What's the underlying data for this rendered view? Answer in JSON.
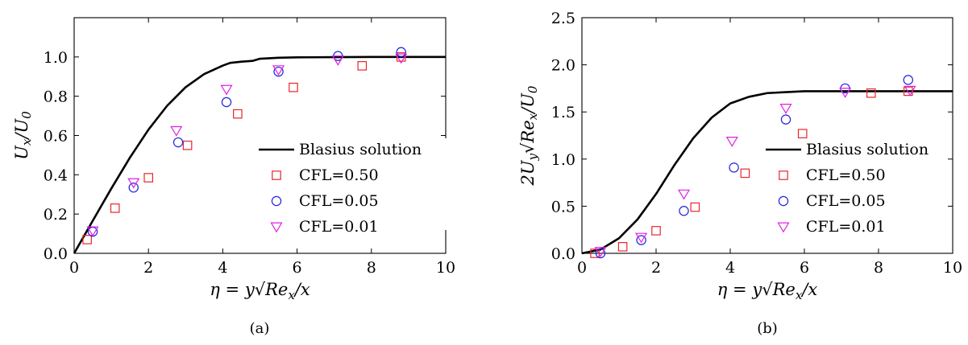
{
  "chart_data": [
    {
      "type": "scatter",
      "caption": "(a)",
      "xlabel": "η = y√Re_x/x",
      "ylabel": "U_x/U_0",
      "xlim": [
        0,
        10
      ],
      "ylim": [
        0,
        1.2
      ],
      "xticks": [
        0,
        2,
        4,
        6,
        8,
        10
      ],
      "yticks": [
        0,
        0.2,
        0.4,
        0.6,
        0.8,
        1.0
      ],
      "xtick_labels": [
        "0",
        "2",
        "4",
        "6",
        "8",
        "10"
      ],
      "ytick_labels": [
        "0.0",
        "0.2",
        "0.4",
        "0.6",
        "0.8",
        "1.0"
      ],
      "grid": false,
      "legend_position": "lower-right",
      "series": [
        {
          "name": "Blasius solution",
          "kind": "line",
          "color": "#000000",
          "x": [
            0,
            0.5,
            1.0,
            1.5,
            2.0,
            2.5,
            3.0,
            3.5,
            4.0,
            4.2,
            4.5,
            4.8,
            5.0,
            5.5,
            6.0,
            7.0,
            8.0,
            9.0,
            10.0
          ],
          "y": [
            0,
            0.166,
            0.33,
            0.487,
            0.63,
            0.751,
            0.846,
            0.913,
            0.956,
            0.97,
            0.976,
            0.98,
            0.991,
            0.996,
            0.998,
            0.999,
            1.0,
            1.0,
            1.0
          ]
        },
        {
          "name": "CFL=0.50",
          "kind": "scatter",
          "marker": "square",
          "color": "#e8262a",
          "x": [
            0.35,
            1.1,
            2.0,
            3.05,
            4.4,
            5.9,
            7.75,
            8.8
          ],
          "y": [
            0.07,
            0.23,
            0.385,
            0.55,
            0.71,
            0.845,
            0.955,
            1.0
          ]
        },
        {
          "name": "CFL=0.05",
          "kind": "scatter",
          "marker": "circle",
          "color": "#2222e0",
          "x": [
            0.5,
            1.6,
            2.8,
            4.1,
            5.5,
            7.1,
            8.8
          ],
          "y": [
            0.11,
            0.335,
            0.565,
            0.77,
            0.925,
            1.005,
            1.025
          ]
        },
        {
          "name": "CFL=0.01",
          "kind": "scatter",
          "marker": "triangle-down",
          "color": "#e020e0",
          "x": [
            0.5,
            1.6,
            2.75,
            4.1,
            5.5,
            7.1,
            8.8
          ],
          "y": [
            0.115,
            0.36,
            0.625,
            0.835,
            0.935,
            0.985,
            0.995
          ]
        }
      ]
    },
    {
      "type": "scatter",
      "caption": "(b)",
      "xlabel": "η = y√Re_x/x",
      "ylabel": "2U_y√Re_x/U_0",
      "xlim": [
        0,
        10
      ],
      "ylim": [
        0,
        2.5
      ],
      "xticks": [
        0,
        2,
        4,
        6,
        8,
        10
      ],
      "yticks": [
        0,
        0.5,
        1.0,
        1.5,
        2.0,
        2.5
      ],
      "xtick_labels": [
        "0",
        "2",
        "4",
        "6",
        "8",
        "10"
      ],
      "ytick_labels": [
        "0.0",
        "0.5",
        "1.0",
        "1.5",
        "2.0",
        "2.5"
      ],
      "grid": false,
      "legend_position": "lower-right",
      "series": [
        {
          "name": "Blasius solution",
          "kind": "line",
          "color": "#000000",
          "x": [
            0,
            0.5,
            1.0,
            1.5,
            2.0,
            2.5,
            3.0,
            3.5,
            4.0,
            4.5,
            5.0,
            5.5,
            6.0,
            6.5,
            7.0,
            8.0,
            9.0,
            10.0
          ],
          "y": [
            0,
            0.04,
            0.16,
            0.36,
            0.63,
            0.94,
            1.22,
            1.44,
            1.59,
            1.66,
            1.7,
            1.71,
            1.72,
            1.72,
            1.72,
            1.72,
            1.72,
            1.72
          ]
        },
        {
          "name": "CFL=0.50",
          "kind": "scatter",
          "marker": "square",
          "color": "#e8262a",
          "x": [
            0.35,
            1.1,
            2.0,
            3.05,
            4.4,
            5.95,
            7.8,
            8.8
          ],
          "y": [
            0.0,
            0.07,
            0.24,
            0.49,
            0.85,
            1.27,
            1.7,
            1.72
          ]
        },
        {
          "name": "CFL=0.05",
          "kind": "scatter",
          "marker": "circle",
          "color": "#2222e0",
          "x": [
            0.5,
            1.6,
            2.75,
            4.1,
            5.5,
            7.1,
            8.8
          ],
          "y": [
            0.0,
            0.14,
            0.45,
            0.91,
            1.42,
            1.75,
            1.84
          ]
        },
        {
          "name": "CFL=0.01",
          "kind": "scatter",
          "marker": "triangle-down",
          "color": "#e020e0",
          "x": [
            0.5,
            1.6,
            2.75,
            4.05,
            5.5,
            7.1,
            8.85
          ],
          "y": [
            0.02,
            0.17,
            0.63,
            1.19,
            1.54,
            1.71,
            1.73
          ]
        }
      ]
    }
  ]
}
